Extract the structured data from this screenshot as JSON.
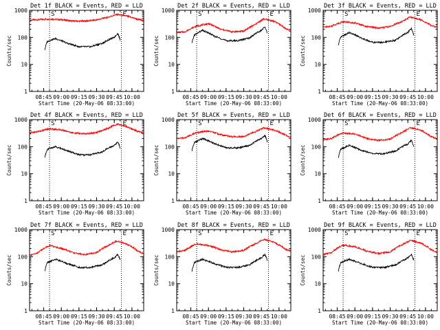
{
  "figure": {
    "ylabel": "Counts/sec",
    "xlabel": "Start Time (20-May-06 08:33:00)",
    "x_tick_labels": [
      "08:45",
      "09:00",
      "09:15",
      "09:30",
      "09:45",
      "10:00"
    ],
    "y_tick_labels": [
      "1",
      "10",
      "100",
      "1000"
    ],
    "colors": {
      "events": "#000000",
      "lld": "#ff0000",
      "axes": "#000000",
      "dotted": "#000000"
    }
  },
  "chart_data": [
    {
      "type": "line",
      "title": "Det 1f BLACK = Events, RED = LLD",
      "xlim": [
        "08:33",
        "10:10"
      ],
      "ylim": [
        1,
        1000
      ],
      "yscale": "log",
      "vlines": [
        "08:50",
        "09:51"
      ],
      "markers": [
        "S",
        "E"
      ],
      "x": [
        "08:46",
        "08:48",
        "08:55",
        "09:05",
        "09:15",
        "09:25",
        "09:35",
        "09:45",
        "09:48",
        "09:50"
      ],
      "series": [
        {
          "name": "LLD",
          "x": [
            "08:33",
            "08:40",
            "08:50",
            "09:00",
            "09:10",
            "09:20",
            "09:30",
            "09:40",
            "09:47",
            "09:55",
            "10:05",
            "10:10"
          ],
          "values": [
            430,
            450,
            480,
            450,
            400,
            400,
            440,
            560,
            700,
            620,
            460,
            420
          ]
        },
        {
          "name": "Events",
          "values": [
            35,
            70,
            90,
            60,
            45,
            45,
            60,
            100,
            140,
            80
          ]
        }
      ]
    },
    {
      "type": "line",
      "title": "Det 2f BLACK = Events, RED = LLD",
      "xlim": [
        "08:33",
        "10:10"
      ],
      "ylim": [
        1,
        1000
      ],
      "yscale": "log",
      "vlines": [
        "08:50",
        "09:51"
      ],
      "markers": [
        "S",
        "E"
      ],
      "x": [
        "08:46",
        "08:48",
        "08:55",
        "09:05",
        "09:15",
        "09:25",
        "09:35",
        "09:45",
        "09:48",
        "09:50"
      ],
      "series": [
        {
          "name": "LLD",
          "x": [
            "08:33",
            "08:40",
            "08:50",
            "09:00",
            "09:10",
            "09:20",
            "09:30",
            "09:40",
            "09:47",
            "09:55",
            "10:05",
            "10:10"
          ],
          "values": [
            150,
            160,
            260,
            320,
            200,
            160,
            170,
            300,
            480,
            400,
            220,
            160
          ]
        },
        {
          "name": "Events",
          "values": [
            60,
            120,
            180,
            110,
            75,
            75,
            95,
            180,
            240,
            140
          ]
        }
      ]
    },
    {
      "type": "line",
      "title": "Det 3f BLACK = Events, RED = LLD",
      "xlim": [
        "08:33",
        "10:10"
      ],
      "ylim": [
        1,
        1000
      ],
      "yscale": "log",
      "vlines": [
        "08:50",
        "09:51"
      ],
      "markers": [
        "S",
        "E"
      ],
      "x": [
        "08:46",
        "08:48",
        "08:55",
        "09:05",
        "09:15",
        "09:25",
        "09:35",
        "09:45",
        "09:48",
        "09:50"
      ],
      "series": [
        {
          "name": "LLD",
          "x": [
            "08:33",
            "08:40",
            "08:50",
            "09:00",
            "09:10",
            "09:20",
            "09:30",
            "09:40",
            "09:47",
            "09:55",
            "10:05",
            "10:10"
          ],
          "values": [
            240,
            260,
            380,
            340,
            250,
            220,
            250,
            380,
            560,
            460,
            270,
            240
          ]
        },
        {
          "name": "Events",
          "values": [
            50,
            100,
            150,
            95,
            65,
            65,
            80,
            150,
            210,
            120
          ]
        }
      ]
    },
    {
      "type": "line",
      "title": "Det 4f BLACK = Events, RED = LLD",
      "xlim": [
        "08:33",
        "10:10"
      ],
      "ylim": [
        1,
        1000
      ],
      "yscale": "log",
      "vlines": [
        "08:50",
        "09:51"
      ],
      "markers": [
        "S",
        "E"
      ],
      "x": [
        "08:46",
        "08:48",
        "08:55",
        "09:05",
        "09:15",
        "09:25",
        "09:35",
        "09:45",
        "09:48",
        "09:50"
      ],
      "series": [
        {
          "name": "LLD",
          "x": [
            "08:33",
            "08:40",
            "08:50",
            "09:00",
            "09:10",
            "09:20",
            "09:30",
            "09:40",
            "09:47",
            "09:55",
            "10:05",
            "10:10"
          ],
          "values": [
            330,
            360,
            460,
            420,
            320,
            300,
            330,
            480,
            680,
            560,
            360,
            330
          ]
        },
        {
          "name": "Events",
          "values": [
            40,
            80,
            100,
            70,
            50,
            50,
            65,
            110,
            150,
            90
          ]
        }
      ]
    },
    {
      "type": "line",
      "title": "Det 5f BLACK = Events, RED = LLD",
      "xlim": [
        "08:33",
        "10:10"
      ],
      "ylim": [
        1,
        1000
      ],
      "yscale": "log",
      "vlines": [
        "08:50",
        "09:51"
      ],
      "markers": [
        "S",
        "E"
      ],
      "x": [
        "08:46",
        "08:48",
        "08:55",
        "09:05",
        "09:15",
        "09:25",
        "09:35",
        "09:45",
        "09:48",
        "09:50"
      ],
      "series": [
        {
          "name": "LLD",
          "x": [
            "08:33",
            "08:40",
            "08:50",
            "09:00",
            "09:10",
            "09:20",
            "09:30",
            "09:40",
            "09:47",
            "09:55",
            "10:05",
            "10:10"
          ],
          "values": [
            200,
            210,
            330,
            380,
            280,
            230,
            240,
            360,
            500,
            420,
            270,
            220
          ]
        },
        {
          "name": "Events",
          "values": [
            70,
            140,
            200,
            130,
            90,
            90,
            110,
            200,
            260,
            150
          ]
        }
      ]
    },
    {
      "type": "line",
      "title": "Det 6f BLACK = Events, RED = LLD",
      "xlim": [
        "08:33",
        "10:10"
      ],
      "ylim": [
        1,
        1000
      ],
      "yscale": "log",
      "vlines": [
        "08:50",
        "09:51"
      ],
      "markers": [
        "S",
        "E"
      ],
      "x": [
        "08:46",
        "08:48",
        "08:55",
        "09:05",
        "09:15",
        "09:25",
        "09:35",
        "09:45",
        "09:48",
        "09:50"
      ],
      "series": [
        {
          "name": "LLD",
          "x": [
            "08:33",
            "08:40",
            "08:50",
            "09:00",
            "09:10",
            "09:20",
            "09:30",
            "09:40",
            "09:47",
            "09:55",
            "10:05",
            "10:10"
          ],
          "values": [
            180,
            200,
            320,
            290,
            200,
            170,
            190,
            330,
            500,
            420,
            230,
            190
          ]
        },
        {
          "name": "Events",
          "values": [
            40,
            80,
            110,
            75,
            55,
            55,
            70,
            125,
            170,
            100
          ]
        }
      ]
    },
    {
      "type": "line",
      "title": "Det 7f BLACK = Events, RED = LLD",
      "xlim": [
        "08:33",
        "10:10"
      ],
      "ylim": [
        1,
        1000
      ],
      "yscale": "log",
      "vlines": [
        "08:50",
        "09:51"
      ],
      "markers": [
        "S",
        "E"
      ],
      "x": [
        "08:46",
        "08:48",
        "08:55",
        "09:05",
        "09:15",
        "09:25",
        "09:35",
        "09:45",
        "09:48",
        "09:50"
      ],
      "series": [
        {
          "name": "LLD",
          "x": [
            "08:33",
            "08:40",
            "08:50",
            "09:00",
            "09:10",
            "09:20",
            "09:30",
            "09:40",
            "09:47",
            "09:55",
            "10:05",
            "10:10"
          ],
          "values": [
            110,
            140,
            260,
            200,
            140,
            120,
            140,
            260,
            380,
            300,
            160,
            130
          ]
        },
        {
          "name": "Events",
          "values": [
            30,
            60,
            80,
            55,
            40,
            40,
            50,
            90,
            120,
            75
          ]
        }
      ]
    },
    {
      "type": "line",
      "title": "Det 8f BLACK = Events, RED = LLD",
      "xlim": [
        "08:33",
        "10:10"
      ],
      "ylim": [
        1,
        1000
      ],
      "yscale": "log",
      "vlines": [
        "08:50",
        "09:51"
      ],
      "markers": [
        "S",
        "E"
      ],
      "x": [
        "08:46",
        "08:48",
        "08:55",
        "09:05",
        "09:15",
        "09:25",
        "09:35",
        "09:45",
        "09:48",
        "09:50"
      ],
      "series": [
        {
          "name": "LLD",
          "x": [
            "08:33",
            "08:40",
            "08:50",
            "09:00",
            "09:10",
            "09:20",
            "09:30",
            "09:40",
            "09:47",
            "09:55",
            "10:05",
            "10:10"
          ],
          "values": [
            150,
            170,
            300,
            260,
            180,
            150,
            170,
            300,
            430,
            350,
            190,
            160
          ]
        },
        {
          "name": "Events",
          "values": [
            30,
            60,
            80,
            55,
            40,
            40,
            50,
            90,
            120,
            75
          ]
        }
      ]
    },
    {
      "type": "line",
      "title": "Det 9f BLACK = Events, RED = LLD",
      "xlim": [
        "08:33",
        "10:10"
      ],
      "ylim": [
        1,
        1000
      ],
      "yscale": "log",
      "vlines": [
        "08:50",
        "09:51"
      ],
      "markers": [
        "S",
        "E"
      ],
      "x": [
        "08:46",
        "08:48",
        "08:55",
        "09:05",
        "09:15",
        "09:25",
        "09:35",
        "09:45",
        "09:48",
        "09:50"
      ],
      "series": [
        {
          "name": "LLD",
          "x": [
            "08:33",
            "08:40",
            "08:50",
            "09:00",
            "09:10",
            "09:20",
            "09:30",
            "09:40",
            "09:47",
            "09:55",
            "10:05",
            "10:10"
          ],
          "values": [
            120,
            140,
            270,
            230,
            160,
            130,
            150,
            270,
            400,
            330,
            180,
            140
          ]
        },
        {
          "name": "Events",
          "values": [
            30,
            60,
            80,
            55,
            40,
            40,
            50,
            90,
            120,
            75
          ]
        }
      ]
    }
  ]
}
